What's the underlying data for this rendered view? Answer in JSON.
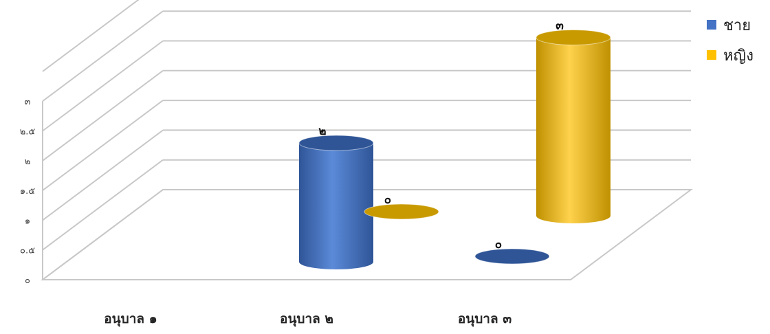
{
  "chart_data": {
    "type": "bar",
    "categories": [
      "อนุบาล ๑",
      "อนุบาล ๒",
      "อนุบาล ๓"
    ],
    "series": [
      {
        "name": "ชาย",
        "values": [
          null,
          2,
          0
        ],
        "labels": [
          "",
          "๒",
          "๐"
        ],
        "color": "#4472C4"
      },
      {
        "name": "หญิง",
        "values": [
          null,
          0,
          3
        ],
        "labels": [
          "",
          "๐",
          "๓"
        ],
        "color": "#FFC000"
      }
    ],
    "y_ticks": [
      "๐",
      "๐.๕",
      "๑",
      "๑.๕",
      "๒",
      "๒.๕",
      "๓"
    ],
    "ylim": [
      0,
      3
    ],
    "grid": true,
    "legend_position": "top-right"
  }
}
